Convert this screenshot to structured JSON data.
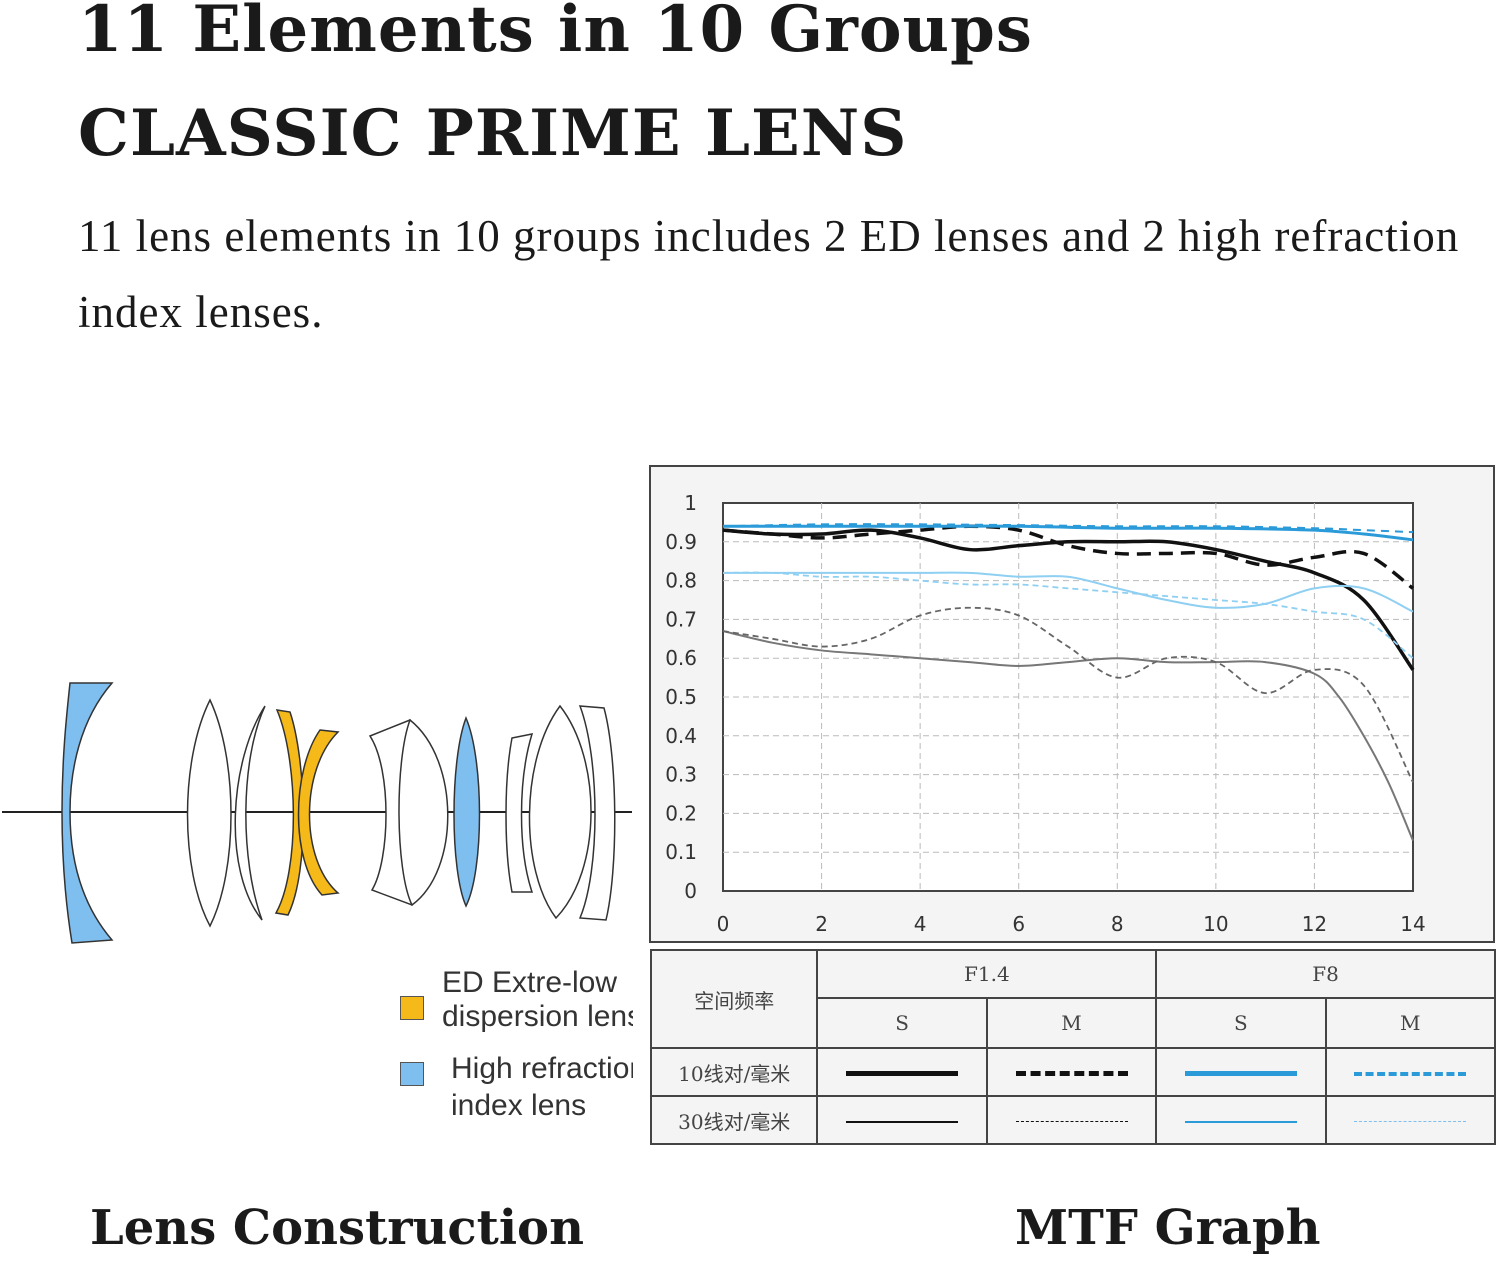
{
  "header": {
    "title": "11 Elements in 10 Groups",
    "subtitle": "CLASSIC PRIME LENS",
    "description": "11 lens elements in 10 groups includes 2 ED lenses and 2 high refraction index lenses."
  },
  "lens_construction": {
    "caption": "Lens Construction",
    "legend": [
      {
        "line1": "ED Extre-low",
        "line2": "dispersion lens",
        "color": "#f5b919"
      },
      {
        "line1": "High refraction",
        "line2": "index lens",
        "color": "#7fbff0"
      }
    ]
  },
  "mtf": {
    "caption": "MTF Graph",
    "key": {
      "corner": "空间频率",
      "groups": [
        "F1.4",
        "F8"
      ],
      "sub": [
        "S",
        "M",
        "S",
        "M"
      ],
      "rows": [
        "10线对/毫米",
        "30线对/毫米"
      ]
    }
  },
  "chart_data": {
    "type": "line",
    "xlim": [
      0,
      14
    ],
    "ylim": [
      0,
      1
    ],
    "xticks": [
      "0",
      "2",
      "4",
      "6",
      "8",
      "10",
      "12",
      "14"
    ],
    "yticks": [
      "0",
      "0.1",
      "0.2",
      "0.3",
      "0.4",
      "0.5",
      "0.6",
      "0.7",
      "0.8",
      "0.9",
      "1"
    ],
    "grid": true,
    "series": [
      {
        "name": "F1.4 10 S",
        "color": "#111111",
        "width": 3.5,
        "dash": "",
        "x": [
          0,
          1,
          2,
          3,
          4,
          5,
          6,
          7,
          8,
          9,
          10,
          11,
          12,
          13,
          14
        ],
        "y": [
          0.93,
          0.92,
          0.92,
          0.93,
          0.91,
          0.88,
          0.89,
          0.9,
          0.9,
          0.9,
          0.88,
          0.85,
          0.82,
          0.75,
          0.57
        ]
      },
      {
        "name": "F1.4 10 M",
        "color": "#111111",
        "width": 3.5,
        "dash": "14 8",
        "x": [
          0,
          1,
          2,
          3,
          4,
          5,
          6,
          7,
          8,
          9,
          10,
          11,
          12,
          13,
          14
        ],
        "y": [
          0.93,
          0.92,
          0.91,
          0.92,
          0.93,
          0.94,
          0.93,
          0.89,
          0.87,
          0.87,
          0.87,
          0.84,
          0.86,
          0.87,
          0.78
        ]
      },
      {
        "name": "F8 10 S",
        "color": "#2a9ad8",
        "width": 3,
        "dash": "",
        "x": [
          0,
          2,
          4,
          6,
          8,
          10,
          12,
          13,
          14
        ],
        "y": [
          0.94,
          0.94,
          0.94,
          0.94,
          0.935,
          0.935,
          0.93,
          0.92,
          0.905
        ]
      },
      {
        "name": "F8 10 M",
        "color": "#2a9ad8",
        "width": 2,
        "dash": "8 6",
        "x": [
          0,
          2,
          4,
          6,
          8,
          10,
          12,
          13,
          14
        ],
        "y": [
          0.94,
          0.945,
          0.945,
          0.943,
          0.94,
          0.94,
          0.935,
          0.93,
          0.925
        ]
      },
      {
        "name": "F1.4 30 S",
        "color": "#777777",
        "width": 2,
        "dash": "",
        "x": [
          0,
          1,
          2,
          3,
          4,
          5,
          6,
          7,
          8,
          9,
          10,
          11,
          12,
          12.5,
          13,
          13.5,
          14
        ],
        "y": [
          0.67,
          0.64,
          0.62,
          0.61,
          0.6,
          0.59,
          0.58,
          0.59,
          0.6,
          0.59,
          0.59,
          0.59,
          0.56,
          0.5,
          0.4,
          0.28,
          0.13
        ]
      },
      {
        "name": "F1.4 30 M",
        "color": "#666666",
        "width": 1.8,
        "dash": "6 4",
        "x": [
          0,
          1,
          2,
          3,
          4,
          5,
          6,
          7,
          8,
          9,
          10,
          11,
          12,
          13,
          14
        ],
        "y": [
          0.67,
          0.65,
          0.63,
          0.65,
          0.71,
          0.73,
          0.71,
          0.63,
          0.55,
          0.6,
          0.59,
          0.51,
          0.57,
          0.53,
          0.28
        ]
      },
      {
        "name": "F8 30 S",
        "color": "#8ecff2",
        "width": 2,
        "dash": "",
        "x": [
          0,
          1,
          2,
          3,
          4,
          5,
          6,
          7,
          8,
          9,
          10,
          11,
          12,
          13,
          14
        ],
        "y": [
          0.82,
          0.82,
          0.82,
          0.82,
          0.82,
          0.82,
          0.81,
          0.81,
          0.78,
          0.75,
          0.73,
          0.74,
          0.78,
          0.78,
          0.72
        ]
      },
      {
        "name": "F8 30 M",
        "color": "#8ecff2",
        "width": 1.8,
        "dash": "6 4",
        "x": [
          0,
          1,
          2,
          3,
          4,
          5,
          6,
          7,
          8,
          9,
          10,
          11,
          12,
          13,
          14
        ],
        "y": [
          0.82,
          0.82,
          0.81,
          0.81,
          0.8,
          0.79,
          0.79,
          0.78,
          0.77,
          0.76,
          0.75,
          0.74,
          0.72,
          0.7,
          0.6
        ]
      }
    ]
  }
}
